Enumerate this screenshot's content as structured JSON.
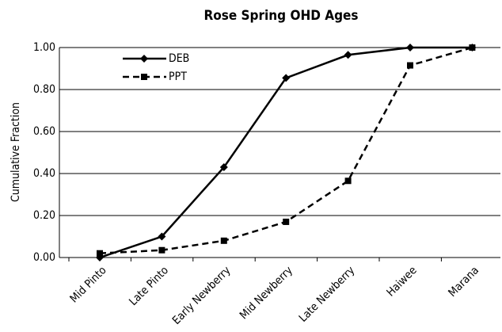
{
  "chart_data": {
    "type": "line",
    "title": "Rose Spring OHD Ages",
    "y_label": "Cumulative Fraction",
    "categories": [
      "Mid Pinto",
      "Late Pinto",
      "Early Newberry",
      "Mid Newberry",
      "Late Newberry",
      "Haiwee",
      "Marana"
    ],
    "series": [
      {
        "name": "DEB",
        "color": "#000000",
        "line_style": "solid",
        "marker": "diamond",
        "values": [
          0.0,
          0.1,
          0.43,
          0.855,
          0.965,
          1.0,
          1.0
        ]
      },
      {
        "name": "PPT",
        "color": "#000000",
        "line_style": "dashed",
        "marker": "square",
        "values": [
          0.02,
          0.035,
          0.08,
          0.17,
          0.365,
          0.915,
          1.0
        ]
      }
    ],
    "ylim": [
      0,
      1
    ],
    "yticks": [
      {
        "value": 0,
        "label": "0.00"
      },
      {
        "value": 0.2,
        "label": "0.20"
      },
      {
        "value": 0.4,
        "label": "0.40"
      },
      {
        "value": 0.6,
        "label": "0.60"
      },
      {
        "value": 0.8,
        "label": "0.80"
      },
      {
        "value": 1,
        "label": "1.00"
      }
    ],
    "grid": true,
    "legend": "upper left"
  }
}
